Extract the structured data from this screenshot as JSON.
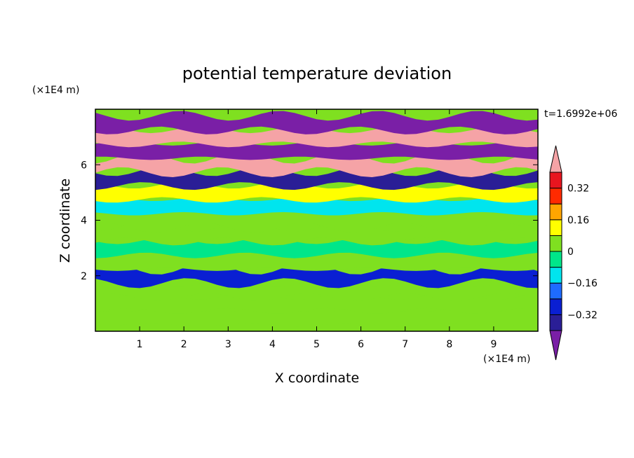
{
  "chart_data": {
    "type": "heatmap",
    "title": "potential temperature deviation",
    "xlabel": "X coordinate",
    "ylabel": "Z coordinate",
    "x_unit": "(×1E4 m)",
    "y_unit": "(×1E4 m)",
    "time_label": "t=1.6992e+06",
    "xlim": [
      0,
      10
    ],
    "ylim": [
      0,
      8
    ],
    "x_ticks": [
      1,
      2,
      3,
      4,
      5,
      6,
      7,
      8,
      9
    ],
    "y_ticks": [
      2,
      4,
      6
    ],
    "colorbar": {
      "levels": [
        -0.4,
        -0.32,
        -0.24,
        -0.16,
        -0.08,
        0,
        0.08,
        0.16,
        0.24,
        0.32,
        0.4
      ],
      "tick_labels": [
        "0.32",
        "0.16",
        "0",
        "−0.16",
        "−0.32"
      ],
      "tick_values": [
        0.32,
        0.16,
        0,
        -0.16,
        -0.32
      ],
      "colors": [
        "#7a1fa6",
        "#2a1e96",
        "#0a1fd2",
        "#1e6bff",
        "#00e5ee",
        "#00e68a",
        "#7fe020",
        "#ffff00",
        "#ffa500",
        "#ff2a00",
        "#e8151f",
        "#f5a3a6"
      ]
    },
    "z_rows": [
      {
        "z": 0.5,
        "value": 0.06
      },
      {
        "z": 1.0,
        "value": 0.04
      },
      {
        "z": 1.5,
        "value": 0.05
      },
      {
        "z": 2.0,
        "value": -0.3
      },
      {
        "z": 2.5,
        "value": 0.02
      },
      {
        "z": 3.0,
        "value": -0.05
      },
      {
        "z": 3.5,
        "value": 0.01
      },
      {
        "z": 4.0,
        "value": 0.05
      },
      {
        "z": 4.5,
        "value": -0.12
      },
      {
        "z": 5.0,
        "value": 0.12
      },
      {
        "z": 5.5,
        "value": -0.35
      },
      {
        "z": 6.0,
        "value": 0.42
      },
      {
        "z": 6.5,
        "value": -0.42
      },
      {
        "z": 7.0,
        "value": 0.42
      },
      {
        "z": 7.5,
        "value": -0.42
      }
    ]
  }
}
